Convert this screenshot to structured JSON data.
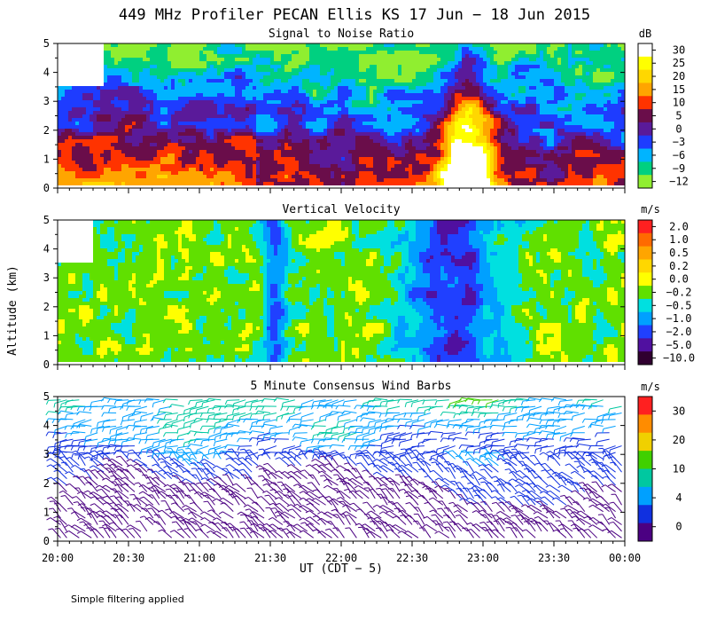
{
  "title": "449 MHz Profiler PECAN Ellis KS 17 Jun − 18 Jun 2015",
  "footnote": "Simple filtering applied",
  "xlabel": "UT  (CDT − 5)",
  "ylabel": "Altitude (km)",
  "chart_data": [
    {
      "type": "heatmap",
      "title": "Signal to Noise Ratio",
      "units": "dB",
      "x_ticks": [
        "20:00",
        "20:30",
        "21:00",
        "21:30",
        "22:00",
        "22:30",
        "23:00",
        "23:30",
        "00:00"
      ],
      "y_ticks": [
        "0",
        "1",
        "2",
        "3",
        "4",
        "5"
      ],
      "ylim": [
        0,
        5
      ],
      "colorbar": {
        "labels": [
          "30",
          "25",
          "20",
          "15",
          "10",
          "5",
          "0",
          "−3",
          "−6",
          "−9",
          "−12"
        ],
        "colors": [
          "#ffffff",
          "#ffff00",
          "#ffd700",
          "#ffa500",
          "#ff3300",
          "#6a0d4a",
          "#5a1a9a",
          "#1e3cff",
          "#00b4ff",
          "#00d080",
          "#90ee30"
        ]
      }
    },
    {
      "type": "heatmap",
      "title": "Vertical Velocity",
      "units": "m/s",
      "x_ticks": [
        "20:00",
        "20:30",
        "21:00",
        "21:30",
        "22:00",
        "22:30",
        "23:00",
        "23:30",
        "00:00"
      ],
      "y_ticks": [
        "0",
        "1",
        "2",
        "3",
        "4",
        "5"
      ],
      "ylim": [
        0,
        5
      ],
      "colorbar": {
        "labels": [
          "2.0",
          "1.0",
          "0.5",
          "0.2",
          "0.0",
          "−0.2",
          "−0.5",
          "−1.0",
          "−2.0",
          "−5.0",
          "−10.0"
        ],
        "colors": [
          "#ff2020",
          "#ff6a00",
          "#ffa500",
          "#ffd700",
          "#ffff00",
          "#60e000",
          "#00e0e0",
          "#00a0ff",
          "#2040ff",
          "#5010a0",
          "#300030"
        ]
      }
    },
    {
      "type": "scatter",
      "title": "5 Minute Consensus Wind Barbs",
      "units": "m/s",
      "x_ticks": [
        "20:00",
        "20:30",
        "21:00",
        "21:30",
        "22:00",
        "22:30",
        "23:00",
        "23:30",
        "00:00"
      ],
      "y_ticks": [
        "0",
        "1",
        "2",
        "3",
        "4",
        "5"
      ],
      "ylim": [
        0,
        5
      ],
      "colorbar": {
        "labels": [
          "30",
          "20",
          "10",
          "4",
          "0"
        ],
        "colors": [
          "#ff2020",
          "#ff8c00",
          "#f0d000",
          "#40d000",
          "#00c8a0",
          "#00a0ff",
          "#1030e0",
          "#4b0082"
        ]
      }
    }
  ]
}
